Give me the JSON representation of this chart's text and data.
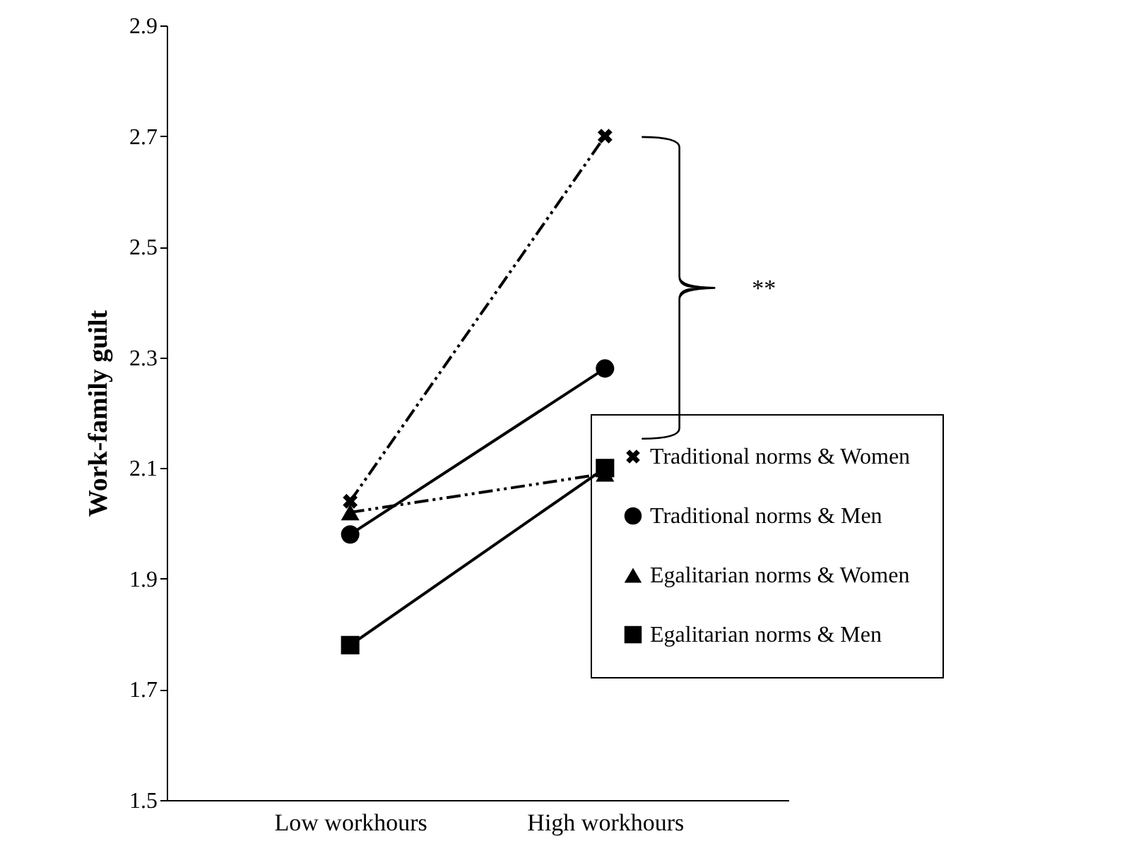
{
  "chart_data": {
    "type": "line",
    "ylabel": "Work-family guilt",
    "categories": [
      "Low workhours",
      "High workhours"
    ],
    "series": [
      {
        "name": "Traditional norms & Women",
        "color": "#000000",
        "marker": "cross",
        "line_style": "dashed",
        "values": [
          2.04,
          2.7
        ]
      },
      {
        "name": "Traditional norms & Men",
        "color": "#000000",
        "marker": "circle",
        "line_style": "solid",
        "values": [
          1.98,
          2.28
        ]
      },
      {
        "name": "Egalitarian norms & Women",
        "color": "#000000",
        "marker": "triangle",
        "line_style": "dashed",
        "values": [
          2.02,
          2.09
        ]
      },
      {
        "name": "Egalitarian norms & Men",
        "color": "#000000",
        "marker": "square",
        "line_style": "solid",
        "values": [
          1.78,
          2.1
        ]
      }
    ],
    "ylim": [
      1.5,
      2.9
    ],
    "yticks": [
      1.5,
      1.7,
      1.9,
      2.1,
      2.3,
      2.5,
      2.7,
      2.9
    ],
    "grid": false,
    "legend": "bottom right",
    "annotations": [
      "**"
    ]
  }
}
